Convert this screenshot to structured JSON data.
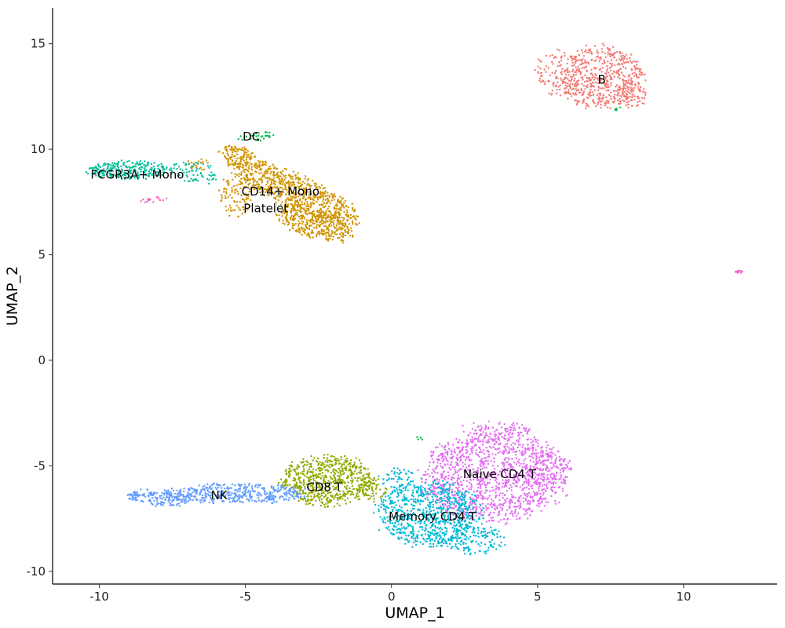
{
  "chart_data": {
    "type": "scatter",
    "title": "",
    "xlabel": "UMAP_1",
    "ylabel": "UMAP_2",
    "xlim": [
      -11.6,
      13.2
    ],
    "ylim": [
      -10.6,
      16.7
    ],
    "xticks": [
      -10,
      -5,
      0,
      5,
      10
    ],
    "yticks": [
      -10,
      -5,
      0,
      5,
      10,
      15
    ],
    "xtick_labels": [
      "-10",
      "-5",
      "0",
      "5",
      "10"
    ],
    "ytick_labels": [
      "-10",
      "-5",
      "0",
      "5",
      "10",
      "15"
    ],
    "grid": false,
    "legend": "none",
    "series": [
      {
        "cluster": "Naive CD4 T",
        "color": "#E36CF2",
        "label_pos": [
          3.7,
          -5.4
        ],
        "blobs": [
          {
            "cx": 3.5,
            "cy": -5.5,
            "rx": 2.5,
            "ry": 2.2,
            "angle": 0,
            "n": 1300
          },
          {
            "cx": 5.3,
            "cy": -5.2,
            "rx": 0.9,
            "ry": 0.9,
            "angle": 0,
            "n": 90
          },
          {
            "cx": 3.6,
            "cy": -3.3,
            "rx": 1.3,
            "ry": 0.45,
            "angle": 0,
            "n": 70
          }
        ]
      },
      {
        "cluster": "Memory CD4 T",
        "color": "#00B9D6",
        "label_pos": [
          1.4,
          -7.4
        ],
        "blobs": [
          {
            "cx": 1.3,
            "cy": -7.3,
            "rx": 1.8,
            "ry": 1.6,
            "angle": -10,
            "n": 800
          },
          {
            "cx": 2.9,
            "cy": -8.5,
            "rx": 1.0,
            "ry": 0.7,
            "angle": 0,
            "n": 120
          },
          {
            "cx": 0.2,
            "cy": -5.6,
            "rx": 0.6,
            "ry": 0.5,
            "angle": 0,
            "n": 50
          }
        ]
      },
      {
        "cluster": "CD8 T",
        "color": "#91A900",
        "label_pos": [
          -2.3,
          -6.0
        ],
        "blobs": [
          {
            "cx": -2.2,
            "cy": -5.7,
            "rx": 1.6,
            "ry": 1.2,
            "angle": 0,
            "n": 650
          },
          {
            "cx": -0.7,
            "cy": -6.1,
            "rx": 0.5,
            "ry": 0.6,
            "angle": 0,
            "n": 60
          }
        ]
      },
      {
        "cluster": "NK",
        "color": "#619CFF",
        "label_pos": [
          -5.9,
          -6.4
        ],
        "blobs": [
          {
            "cx": -5.3,
            "cy": -6.3,
            "rx": 2.4,
            "ry": 0.5,
            "angle": 0,
            "n": 420
          },
          {
            "cx": -8.0,
            "cy": -6.5,
            "rx": 1.2,
            "ry": 0.4,
            "angle": -5,
            "n": 170
          }
        ]
      },
      {
        "cluster": "B",
        "color": "#F27A73",
        "label_pos": [
          7.2,
          13.3
        ],
        "blobs": [
          {
            "cx": 7.2,
            "cy": 13.4,
            "rx": 1.5,
            "ry": 1.5,
            "angle": 0,
            "n": 500
          },
          {
            "cx": 5.8,
            "cy": 13.6,
            "rx": 0.9,
            "ry": 1.1,
            "angle": 0,
            "n": 120
          },
          {
            "cx": 8.2,
            "cy": 12.6,
            "rx": 0.5,
            "ry": 0.7,
            "angle": 0,
            "n": 70
          }
        ]
      },
      {
        "cluster": "CD14+ Mono",
        "color": "#D09400",
        "label_pos": [
          -3.8,
          8.0
        ],
        "blobs": [
          {
            "cx": -3.3,
            "cy": 8.0,
            "rx": 2.6,
            "ry": 0.75,
            "angle": -33,
            "n": 700
          },
          {
            "cx": -2.6,
            "cy": 6.5,
            "rx": 1.4,
            "ry": 0.7,
            "angle": -25,
            "n": 350
          },
          {
            "cx": -5.2,
            "cy": 9.6,
            "rx": 0.8,
            "ry": 0.5,
            "angle": -40,
            "n": 120
          },
          {
            "cx": -5.3,
            "cy": 7.8,
            "rx": 0.6,
            "ry": 1.0,
            "angle": 0,
            "n": 100
          },
          {
            "cx": -6.6,
            "cy": 9.3,
            "rx": 0.4,
            "ry": 0.3,
            "angle": 0,
            "n": 20
          }
        ]
      },
      {
        "cluster": "FCGR3A+ Mono",
        "color": "#00BF9A",
        "label_pos": [
          -8.7,
          8.8
        ],
        "blobs": [
          {
            "cx": -9.0,
            "cy": 9.0,
            "rx": 1.4,
            "ry": 0.45,
            "angle": 0,
            "n": 260
          },
          {
            "cx": -6.8,
            "cy": 8.9,
            "rx": 0.9,
            "ry": 0.5,
            "angle": -15,
            "n": 70
          }
        ]
      },
      {
        "cluster": "DC",
        "color": "#00B64A",
        "label_pos": [
          -4.8,
          10.6
        ],
        "blobs": [
          {
            "cx": -4.6,
            "cy": 10.6,
            "rx": 0.7,
            "ry": 0.2,
            "angle": 10,
            "n": 30
          },
          {
            "cx": 7.8,
            "cy": 11.9,
            "rx": 0.25,
            "ry": 0.1,
            "angle": 0,
            "n": 6
          },
          {
            "cx": 1.0,
            "cy": -3.7,
            "rx": 0.15,
            "ry": 0.1,
            "angle": 0,
            "n": 4
          }
        ]
      },
      {
        "cluster": "Platelet",
        "color": "#F366C6",
        "label_pos": [
          -4.3,
          7.2
        ],
        "blobs": [
          {
            "cx": -8.1,
            "cy": 7.6,
            "rx": 0.5,
            "ry": 0.15,
            "angle": 0,
            "n": 16
          },
          {
            "cx": 11.9,
            "cy": 4.2,
            "rx": 0.15,
            "ry": 0.08,
            "angle": -20,
            "n": 14
          }
        ]
      }
    ]
  }
}
